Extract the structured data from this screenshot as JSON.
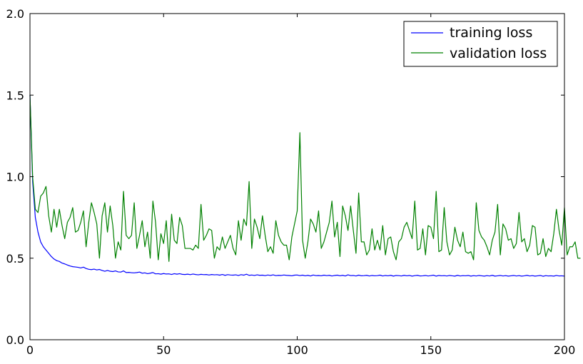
{
  "chart_data": {
    "type": "line",
    "title": "",
    "xlabel": "",
    "ylabel": "",
    "xlim": [
      0,
      200
    ],
    "ylim": [
      0.0,
      2.0
    ],
    "x_ticks": [
      "0",
      "50",
      "100",
      "150",
      "200"
    ],
    "y_ticks": [
      "0.0",
      "0.5",
      "1.0",
      "1.5",
      "2.0"
    ],
    "grid": false,
    "legend_position": "top-right",
    "series": [
      {
        "name": "training loss",
        "color": "#0000ff",
        "values": [
          1.5,
          0.97,
          0.75,
          0.66,
          0.6,
          0.57,
          0.55,
          0.53,
          0.51,
          0.495,
          0.485,
          0.48,
          0.47,
          0.465,
          0.458,
          0.452,
          0.448,
          0.446,
          0.444,
          0.44,
          0.445,
          0.437,
          0.432,
          0.43,
          0.433,
          0.428,
          0.431,
          0.425,
          0.42,
          0.425,
          0.42,
          0.418,
          0.422,
          0.416,
          0.415,
          0.422,
          0.412,
          0.413,
          0.411,
          0.41,
          0.412,
          0.415,
          0.408,
          0.41,
          0.405,
          0.408,
          0.412,
          0.404,
          0.405,
          0.402,
          0.406,
          0.403,
          0.404,
          0.4,
          0.405,
          0.402,
          0.405,
          0.401,
          0.4,
          0.402,
          0.399,
          0.403,
          0.4,
          0.398,
          0.401,
          0.399,
          0.4,
          0.397,
          0.4,
          0.398,
          0.399,
          0.396,
          0.4,
          0.395,
          0.399,
          0.397,
          0.396,
          0.398,
          0.394,
          0.399,
          0.396,
          0.402,
          0.395,
          0.397,
          0.394,
          0.398,
          0.395,
          0.396,
          0.393,
          0.397,
          0.394,
          0.398,
          0.393,
          0.395,
          0.394,
          0.397,
          0.395,
          0.394,
          0.392,
          0.396,
          0.397,
          0.393,
          0.396,
          0.392,
          0.395,
          0.391,
          0.397,
          0.393,
          0.394,
          0.392,
          0.396,
          0.393,
          0.395,
          0.391,
          0.394,
          0.396,
          0.392,
          0.395,
          0.391,
          0.398,
          0.393,
          0.394,
          0.391,
          0.396,
          0.392,
          0.393,
          0.395,
          0.391,
          0.394,
          0.392,
          0.393,
          0.396,
          0.391,
          0.394,
          0.392,
          0.395,
          0.39,
          0.394,
          0.393,
          0.391,
          0.395,
          0.392,
          0.394,
          0.39,
          0.393,
          0.395,
          0.391,
          0.392,
          0.394,
          0.391,
          0.393,
          0.396,
          0.39,
          0.394,
          0.392,
          0.393,
          0.391,
          0.394,
          0.392,
          0.39,
          0.395,
          0.391,
          0.393,
          0.392,
          0.394,
          0.39,
          0.393,
          0.391,
          0.394,
          0.392,
          0.39,
          0.393,
          0.391,
          0.395,
          0.39,
          0.392,
          0.394,
          0.391,
          0.393,
          0.39,
          0.392,
          0.394,
          0.391,
          0.393,
          0.39,
          0.392,
          0.395,
          0.391,
          0.393,
          0.39,
          0.392,
          0.394,
          0.389,
          0.393,
          0.391,
          0.392,
          0.39,
          0.394,
          0.391,
          0.392,
          0.39
        ]
      },
      {
        "name": "validation loss",
        "color": "#008000",
        "values": [
          1.5,
          1.0,
          0.8,
          0.78,
          0.88,
          0.9,
          0.94,
          0.76,
          0.66,
          0.8,
          0.69,
          0.8,
          0.7,
          0.62,
          0.72,
          0.75,
          0.81,
          0.66,
          0.67,
          0.72,
          0.79,
          0.57,
          0.72,
          0.84,
          0.78,
          0.71,
          0.5,
          0.76,
          0.84,
          0.66,
          0.82,
          0.7,
          0.5,
          0.6,
          0.55,
          0.91,
          0.64,
          0.62,
          0.64,
          0.84,
          0.56,
          0.64,
          0.73,
          0.57,
          0.66,
          0.5,
          0.85,
          0.72,
          0.49,
          0.65,
          0.59,
          0.73,
          0.48,
          0.77,
          0.61,
          0.59,
          0.75,
          0.7,
          0.56,
          0.56,
          0.56,
          0.55,
          0.58,
          0.56,
          0.83,
          0.61,
          0.64,
          0.68,
          0.67,
          0.5,
          0.57,
          0.55,
          0.63,
          0.56,
          0.6,
          0.64,
          0.56,
          0.52,
          0.73,
          0.61,
          0.74,
          0.7,
          0.97,
          0.56,
          0.74,
          0.69,
          0.62,
          0.76,
          0.64,
          0.54,
          0.57,
          0.53,
          0.73,
          0.64,
          0.6,
          0.58,
          0.58,
          0.49,
          0.63,
          0.71,
          0.79,
          1.27,
          0.61,
          0.5,
          0.6,
          0.74,
          0.71,
          0.66,
          0.79,
          0.56,
          0.6,
          0.66,
          0.72,
          0.85,
          0.63,
          0.72,
          0.51,
          0.82,
          0.76,
          0.67,
          0.82,
          0.67,
          0.53,
          0.9,
          0.6,
          0.6,
          0.52,
          0.55,
          0.68,
          0.55,
          0.61,
          0.55,
          0.7,
          0.52,
          0.62,
          0.63,
          0.54,
          0.49,
          0.6,
          0.62,
          0.69,
          0.72,
          0.67,
          0.62,
          0.85,
          0.55,
          0.56,
          0.68,
          0.52,
          0.7,
          0.69,
          0.62,
          0.91,
          0.54,
          0.55,
          0.81,
          0.6,
          0.52,
          0.55,
          0.69,
          0.61,
          0.57,
          0.66,
          0.54,
          0.53,
          0.54,
          0.49,
          0.84,
          0.67,
          0.63,
          0.61,
          0.57,
          0.52,
          0.61,
          0.66,
          0.83,
          0.52,
          0.71,
          0.68,
          0.61,
          0.62,
          0.56,
          0.59,
          0.78,
          0.6,
          0.62,
          0.54,
          0.58,
          0.7,
          0.69,
          0.52,
          0.53,
          0.62,
          0.51,
          0.56,
          0.54,
          0.65,
          0.8,
          0.67,
          0.58,
          0.81,
          0.52,
          0.57,
          0.57,
          0.6,
          0.5,
          0.5
        ]
      }
    ]
  }
}
